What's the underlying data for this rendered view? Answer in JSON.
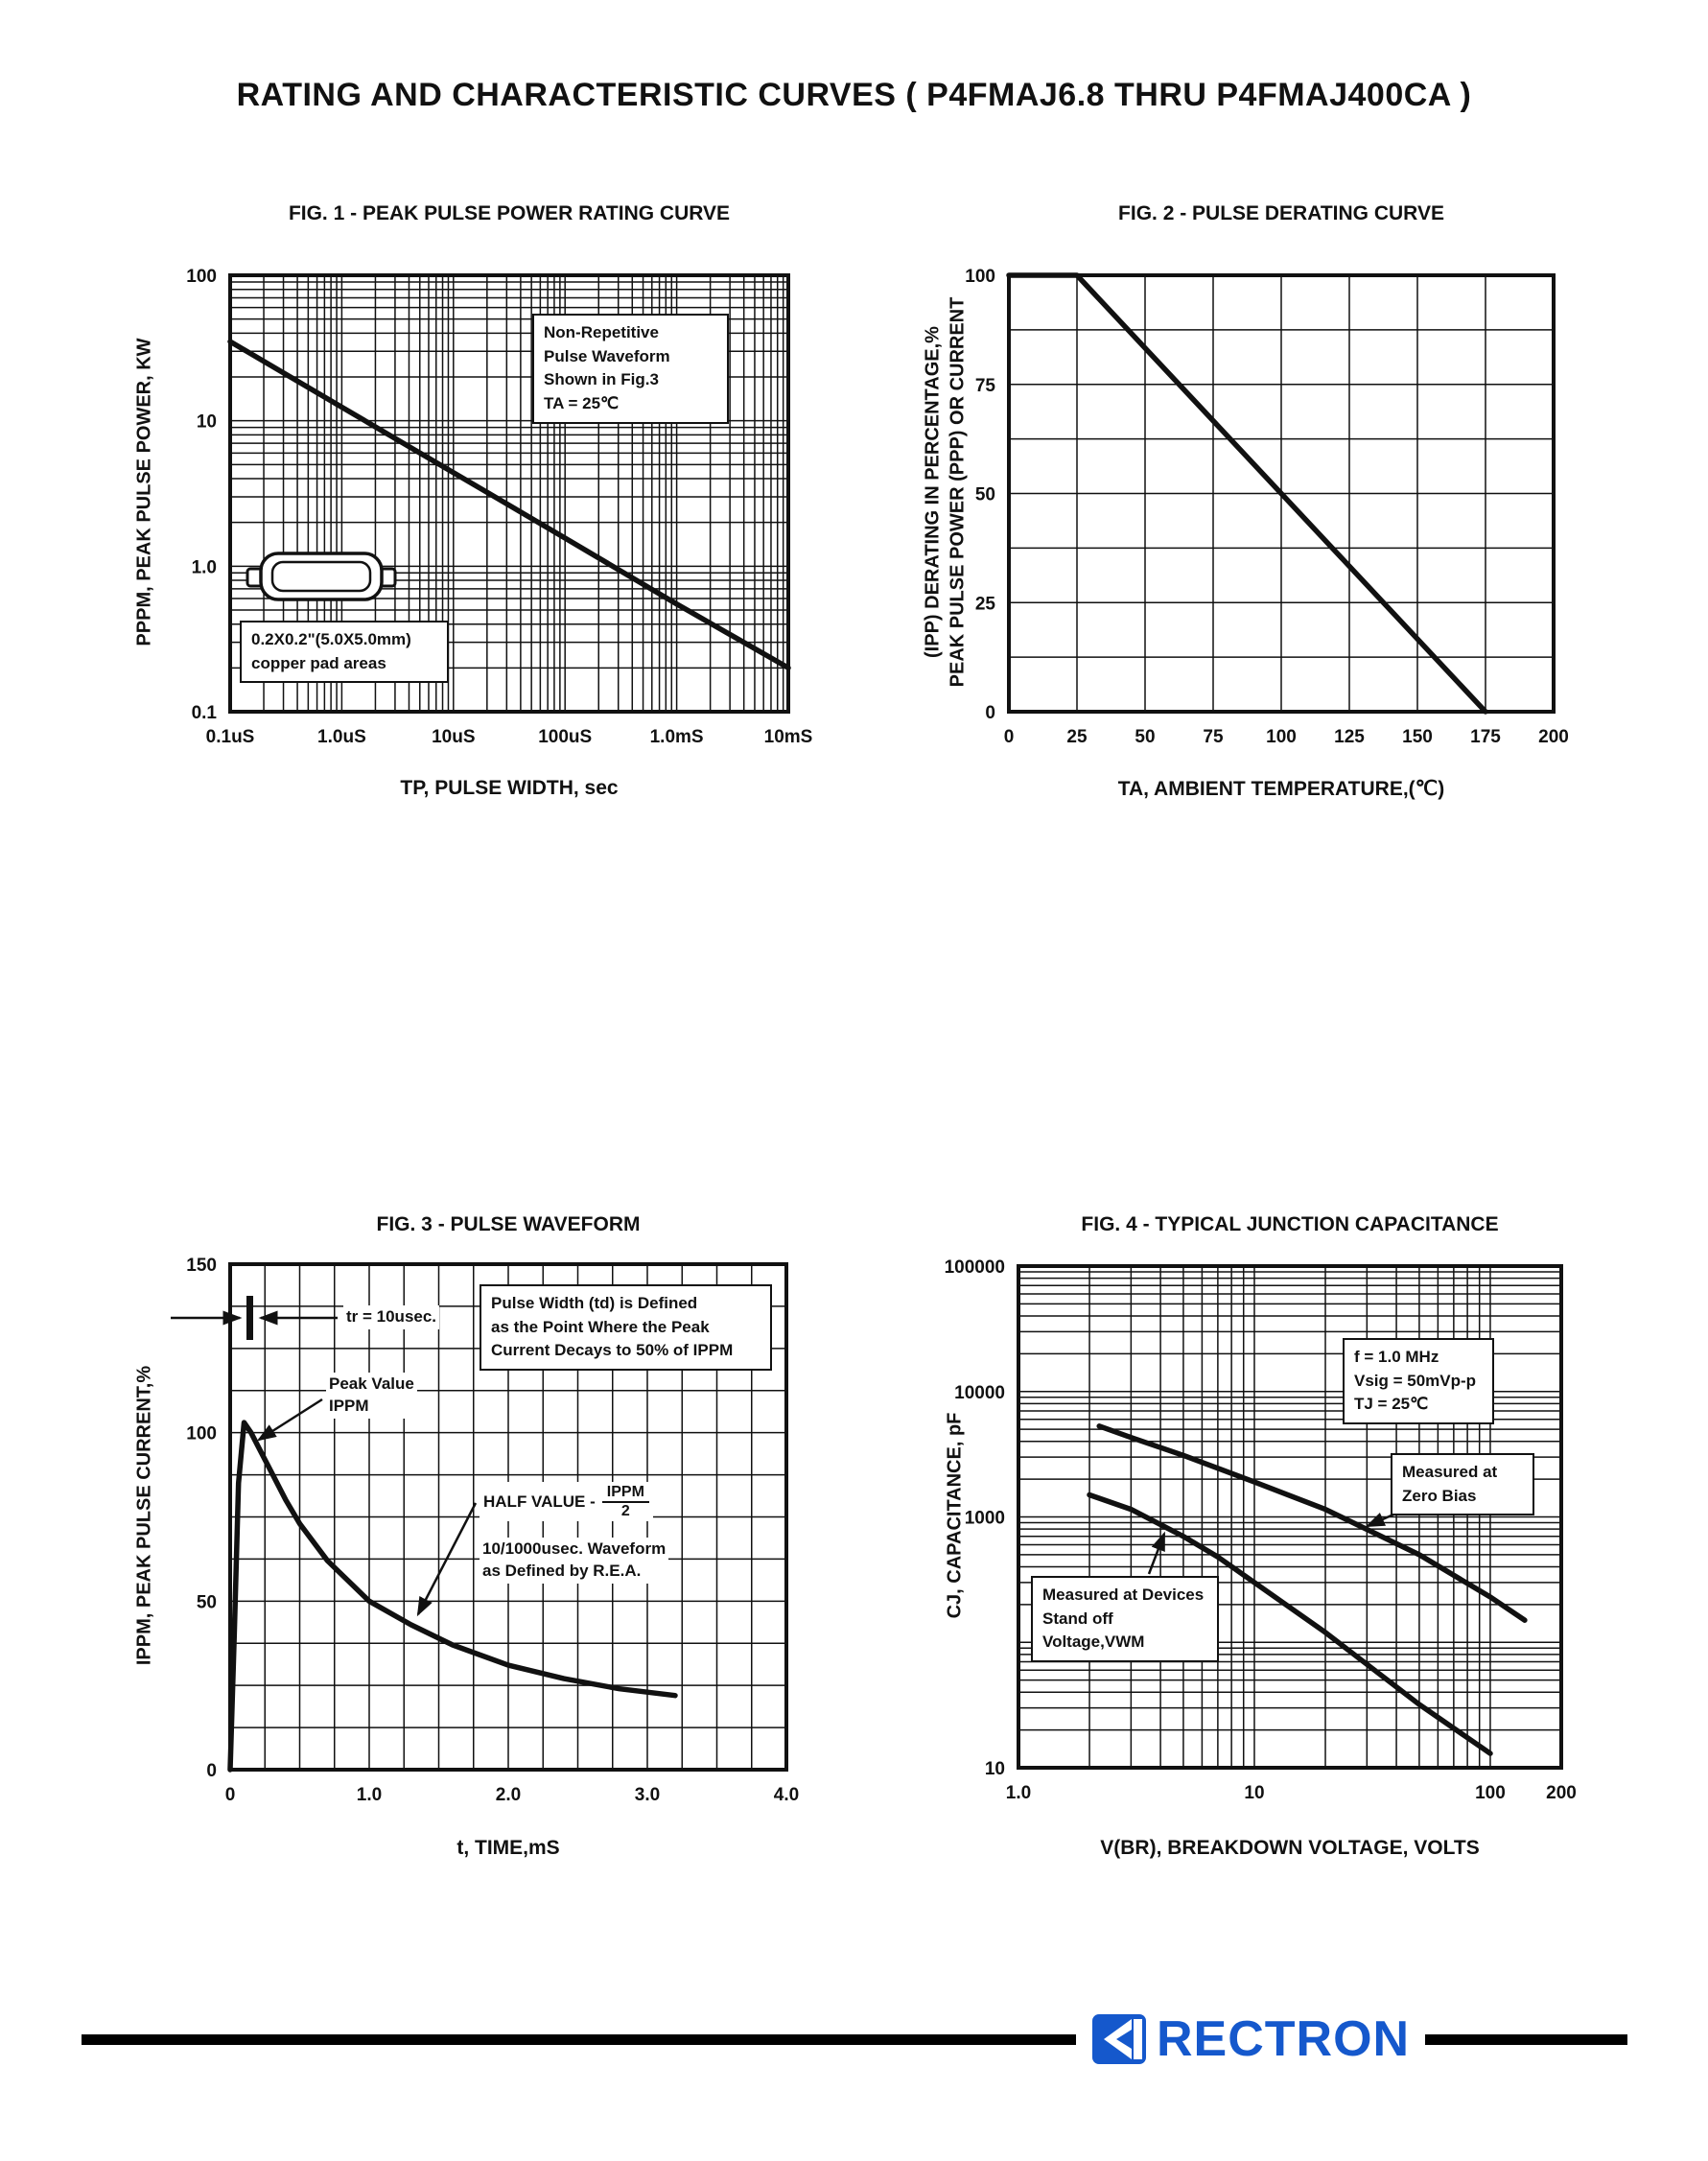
{
  "page": {
    "title": "RATING AND CHARACTERISTIC CURVES ( P4FMAJ6.8 THRU P4FMAJ400CA )"
  },
  "footer": {
    "brand": "RECTRON",
    "brand_color": "#1558cc",
    "rule_color": "#000000"
  },
  "fig1": {
    "note": "Non-Repetitive\nPulse Waveform\nShown in Fig.3\nTA = 25℃",
    "pad_note": "0.2X0.2\"(5.0X5.0mm)\ncopper pad areas"
  },
  "fig3": {
    "tr_label": "tr = 10usec.",
    "peak_label": "Peak Value\nIPPM",
    "pulse_width_note": "Pulse Width (td) is Defined\nas the Point Where the Peak\nCurrent Decays to 50% of IPPM",
    "half_label": "HALF VALUE -",
    "half_num": "IPPM",
    "half_den": "2",
    "rea_note": "10/1000usec. Waveform\nas Defined by R.E.A."
  },
  "fig4": {
    "cond_note": "f = 1.0 MHz\nVsig = 50mVp-p\nTJ = 25℃",
    "zero_bias_note": "Measured at\nZero Bias",
    "standoff_note": "Measured at Devices\nStand off\nVoltage,VWM"
  },
  "chart_data": [
    {
      "id": "fig1",
      "type": "line",
      "title": "FIG. 1 - PEAK PULSE POWER RATING CURVE",
      "xlabel": "TP, PULSE WIDTH, sec",
      "ylabel": "PPPM, PEAK PULSE POWER, KW",
      "xlog": true,
      "ylog": true,
      "xlim": [
        1e-07,
        0.01
      ],
      "ylim": [
        0.1,
        100
      ],
      "grid": "log-log",
      "legend": "none",
      "xticks": [
        {
          "v": 1e-07,
          "l": "0.1uS"
        },
        {
          "v": 1e-06,
          "l": "1.0uS"
        },
        {
          "v": 1e-05,
          "l": "10uS"
        },
        {
          "v": 0.0001,
          "l": "100uS"
        },
        {
          "v": 0.001,
          "l": "1.0mS"
        },
        {
          "v": 0.01,
          "l": "10mS"
        }
      ],
      "yticks": [
        {
          "v": 100,
          "l": "100"
        },
        {
          "v": 10,
          "l": "10"
        },
        {
          "v": 1,
          "l": "1.0"
        },
        {
          "v": 0.1,
          "l": "0.1"
        }
      ],
      "series": [
        {
          "name": "peak-pulse-power",
          "x": [
            1e-07,
            1e-06,
            1e-05,
            0.0001,
            0.001,
            0.01
          ],
          "y": [
            35,
            12.4,
            4.4,
            1.56,
            0.55,
            0.2
          ]
        }
      ]
    },
    {
      "id": "fig2",
      "type": "line",
      "title": "FIG. 2 - PULSE DERATING CURVE",
      "xlabel": "TA, AMBIENT TEMPERATURE,(℃)",
      "ylabel": "(IPP) DERATING IN PERCENTAGE,%\nPEAK PULSE POWER (PPP) OR CURRENT",
      "xlog": false,
      "ylog": false,
      "xlim": [
        0,
        200
      ],
      "ylim": [
        0,
        100
      ],
      "xstep": 25,
      "ystep": 12.5,
      "grid": "on",
      "legend": "none",
      "xticks": [
        {
          "v": 0,
          "l": "0"
        },
        {
          "v": 25,
          "l": "25"
        },
        {
          "v": 50,
          "l": "50"
        },
        {
          "v": 75,
          "l": "75"
        },
        {
          "v": 100,
          "l": "100"
        },
        {
          "v": 125,
          "l": "125"
        },
        {
          "v": 150,
          "l": "150"
        },
        {
          "v": 175,
          "l": "175"
        },
        {
          "v": 200,
          "l": "200"
        }
      ],
      "yticks": [
        {
          "v": 0,
          "l": "0"
        },
        {
          "v": 25,
          "l": "25"
        },
        {
          "v": 50,
          "l": "50"
        },
        {
          "v": 75,
          "l": "75"
        },
        {
          "v": 100,
          "l": "100"
        }
      ],
      "series": [
        {
          "name": "derating",
          "x": [
            0,
            25,
            175
          ],
          "y": [
            100,
            100,
            0
          ]
        }
      ]
    },
    {
      "id": "fig3",
      "type": "line",
      "title": "FIG. 3 - PULSE WAVEFORM",
      "xlabel": "t, TIME,mS",
      "ylabel": "IPPM, PEAK PULSE CURRENT,%",
      "xlog": false,
      "ylog": false,
      "xlim": [
        0,
        4
      ],
      "ylim": [
        0,
        150
      ],
      "xstep": 0.25,
      "ystep": 12.5,
      "grid": "on",
      "legend": "none",
      "xticks": [
        {
          "v": 0,
          "l": "0"
        },
        {
          "v": 1,
          "l": "1.0"
        },
        {
          "v": 2,
          "l": "2.0"
        },
        {
          "v": 3,
          "l": "3.0"
        },
        {
          "v": 4,
          "l": "4.0"
        }
      ],
      "yticks": [
        {
          "v": 0,
          "l": "0"
        },
        {
          "v": 50,
          "l": "50"
        },
        {
          "v": 100,
          "l": "100"
        },
        {
          "v": 150,
          "l": "150"
        }
      ],
      "series": [
        {
          "name": "pulse-waveform",
          "x": [
            0,
            0.03,
            0.06,
            0.1,
            0.15,
            0.2,
            0.3,
            0.4,
            0.5,
            0.7,
            1.0,
            1.3,
            1.6,
            2.0,
            2.4,
            2.8,
            3.2
          ],
          "y": [
            0,
            40,
            85,
            103,
            100,
            96,
            88,
            80,
            73,
            62,
            50,
            43,
            37,
            31,
            27,
            24,
            22
          ]
        }
      ]
    },
    {
      "id": "fig4",
      "type": "line",
      "title": "FIG. 4 - TYPICAL JUNCTION CAPACITANCE",
      "xlabel": "V(BR), BREAKDOWN VOLTAGE, VOLTS",
      "ylabel": "CJ, CAPACITANCE, pF",
      "xlog": true,
      "ylog": true,
      "xlim": [
        1,
        200
      ],
      "ylim": [
        10,
        100000
      ],
      "grid": "log-log",
      "legend": "none",
      "xticks": [
        {
          "v": 1,
          "l": "1.0"
        },
        {
          "v": 10,
          "l": "10"
        },
        {
          "v": 100,
          "l": "100"
        },
        {
          "v": 200,
          "l": "200"
        }
      ],
      "yticks": [
        {
          "v": 100000,
          "l": "100000"
        },
        {
          "v": 10000,
          "l": "10000"
        },
        {
          "v": 1000,
          "l": "1000"
        },
        {
          "v": 10,
          "l": "10"
        }
      ],
      "series": [
        {
          "name": "zero-bias",
          "x": [
            2.2,
            3,
            5,
            10,
            20,
            50,
            100,
            140
          ],
          "y": [
            5300,
            4300,
            3100,
            1900,
            1150,
            500,
            230,
            150
          ]
        },
        {
          "name": "standoff-voltage",
          "x": [
            2,
            3,
            5,
            7,
            10,
            20,
            50,
            100
          ],
          "y": [
            1500,
            1150,
            700,
            480,
            300,
            120,
            32,
            13
          ]
        }
      ]
    }
  ]
}
